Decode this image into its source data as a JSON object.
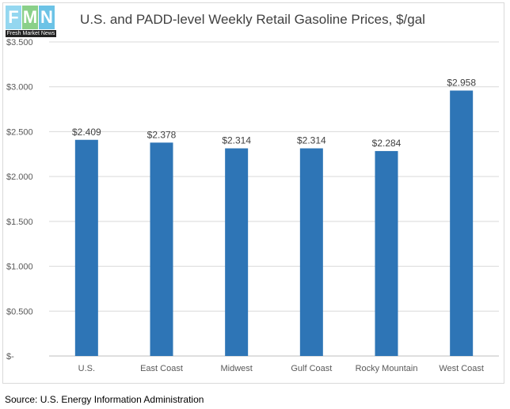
{
  "logo": {
    "letters": [
      "F",
      "M",
      "N"
    ],
    "brand_text": "Fresh Market News"
  },
  "chart_data": {
    "type": "bar",
    "title": "U.S. and PADD-level Weekly Retail Gasoline Prices, $/gal",
    "xlabel": "",
    "ylabel": "",
    "categories": [
      "U.S.",
      "East Coast",
      "Midwest",
      "Gulf Coast",
      "Rocky Mountain",
      "West Coast"
    ],
    "values": [
      2.409,
      2.378,
      2.314,
      2.314,
      2.284,
      2.958
    ],
    "data_labels": [
      "$2.409",
      "$2.378",
      "$2.314",
      "$2.314",
      "$2.284",
      "$2.958"
    ],
    "ylim": [
      0,
      3.5
    ],
    "yticks": [
      0,
      0.5,
      1.0,
      1.5,
      2.0,
      2.5,
      3.0,
      3.5
    ],
    "ytick_labels": [
      "$-",
      "$0.500",
      "$1.000",
      "$1.500",
      "$2.000",
      "$2.500",
      "$3.000",
      "$3.500"
    ],
    "grid": true,
    "bar_color": "#2e75b6",
    "legend": "none"
  },
  "source": "Source: U.S. Energy Information Administration"
}
